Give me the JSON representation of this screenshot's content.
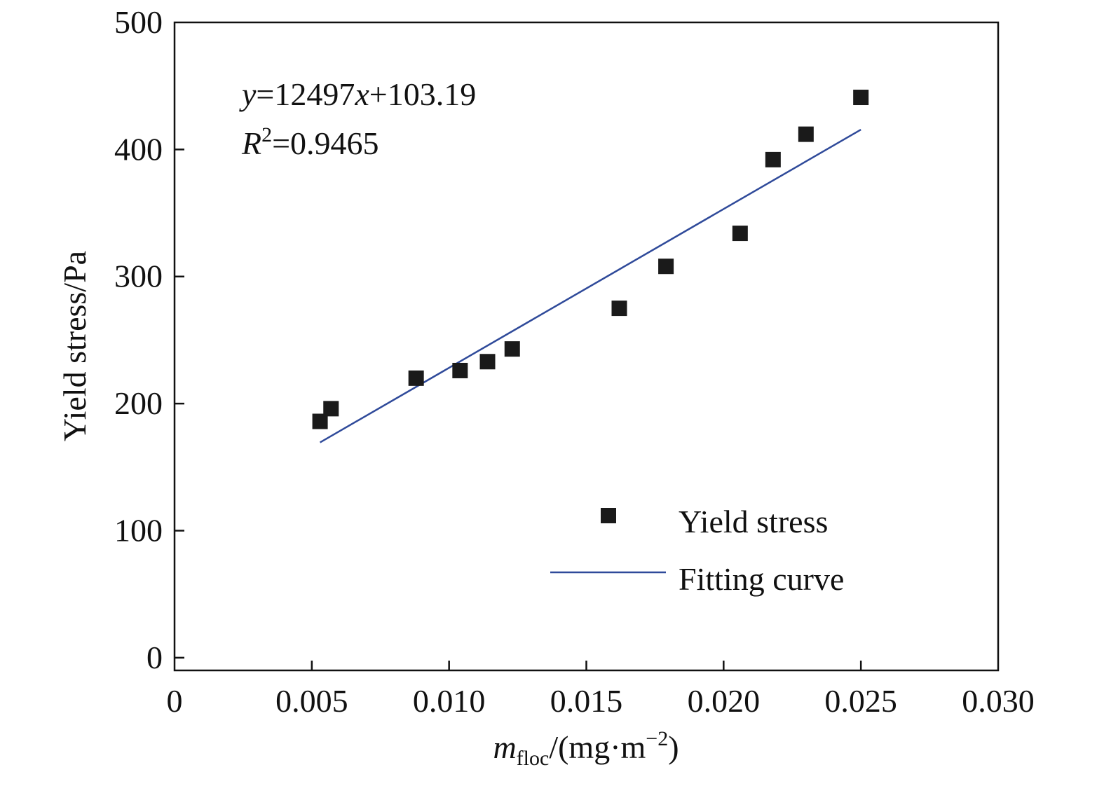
{
  "chart_data": {
    "type": "scatter",
    "xlim": [
      0,
      0.03
    ],
    "ylim": [
      -10,
      500
    ],
    "x_ticks": [
      {
        "value": 0,
        "label": "0"
      },
      {
        "value": 0.005,
        "label": "0.005"
      },
      {
        "value": 0.01,
        "label": "0.010"
      },
      {
        "value": 0.015,
        "label": "0.015"
      },
      {
        "value": 0.02,
        "label": "0.020"
      },
      {
        "value": 0.025,
        "label": "0.025"
      },
      {
        "value": 0.03,
        "label": "0.030"
      }
    ],
    "y_ticks": [
      {
        "value": 0,
        "label": "0"
      },
      {
        "value": 100,
        "label": "100"
      },
      {
        "value": 200,
        "label": "200"
      },
      {
        "value": 300,
        "label": "300"
      },
      {
        "value": 400,
        "label": "400"
      },
      {
        "value": 500,
        "label": "500"
      }
    ],
    "xlabel": {
      "main": "m",
      "sub": "floc",
      "rest": "/(mg·m",
      "sup": "−2",
      "end": ")"
    },
    "ylabel": "Yield stress/Pa",
    "annotations": {
      "equation": {
        "y": "y",
        "eq1": "=12497",
        "x": "x",
        "eq2": "+103.19"
      },
      "r2": {
        "R": "R",
        "sup": "2",
        "eq": "=0.9465"
      }
    },
    "legend": {
      "placement": "bottom-right",
      "entries": [
        "Yield stress",
        "Fitting curve"
      ]
    },
    "series": [
      {
        "name": "Yield stress",
        "kind": "scatter",
        "color": "#1a1a1a",
        "points": [
          {
            "x": 0.0053,
            "y": 186
          },
          {
            "x": 0.0057,
            "y": 196
          },
          {
            "x": 0.0088,
            "y": 220
          },
          {
            "x": 0.0104,
            "y": 226
          },
          {
            "x": 0.0114,
            "y": 233
          },
          {
            "x": 0.0123,
            "y": 243
          },
          {
            "x": 0.0162,
            "y": 275
          },
          {
            "x": 0.0179,
            "y": 308
          },
          {
            "x": 0.0206,
            "y": 334
          },
          {
            "x": 0.0218,
            "y": 392
          },
          {
            "x": 0.023,
            "y": 412
          },
          {
            "x": 0.025,
            "y": 441
          }
        ]
      },
      {
        "name": "Fitting curve",
        "kind": "line",
        "color": "#2f4a9a",
        "slope": 12497,
        "intercept": 103.19,
        "x_range": [
          0.0053,
          0.025
        ]
      }
    ]
  }
}
